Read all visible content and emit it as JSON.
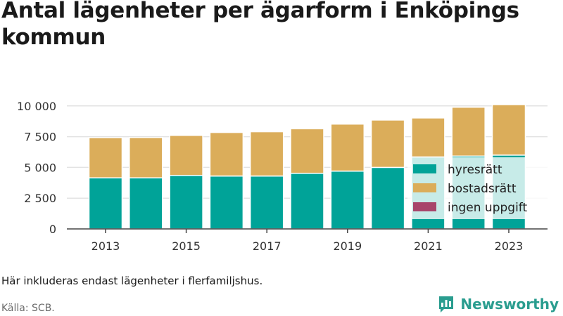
{
  "title": "Antal lägenheter per ägarform i Enköpings kommun",
  "note": "Här inkluderas endast lägenheter i flerfamiljshus.",
  "source": "Källa: SCB.",
  "brand": {
    "name": "Newsworthy",
    "icon": "bar-chart-speech-bubble-icon",
    "color": "#2a9d8f"
  },
  "chart_data": {
    "type": "bar",
    "stacked": true,
    "title": "Antal lägenheter per ägarform i Enköpings kommun",
    "xlabel": "",
    "ylabel": "",
    "x": [
      2013,
      2014,
      2015,
      2016,
      2017,
      2018,
      2019,
      2020,
      2021,
      2022,
      2023
    ],
    "x_tick_labels": [
      "2013",
      "2015",
      "2017",
      "2019",
      "2021",
      "2023"
    ],
    "x_ticks": [
      2013,
      2015,
      2017,
      2019,
      2021,
      2023
    ],
    "y_ticks": [
      0,
      2500,
      5000,
      7500,
      10000
    ],
    "y_tick_labels": [
      "0",
      "2 500",
      "5 000",
      "7 500",
      "10 000"
    ],
    "ylim": [
      0,
      10500
    ],
    "grid": true,
    "legend_position": "bottom-right",
    "series": [
      {
        "name": "hyresrätt",
        "color": "#00a398",
        "values": [
          4150,
          4150,
          4350,
          4300,
          4300,
          4520,
          4700,
          5000,
          5850,
          5920,
          6000
        ]
      },
      {
        "name": "bostadsrätt",
        "color": "#dbad5a",
        "values": [
          3270,
          3280,
          3250,
          3540,
          3600,
          3620,
          3820,
          3850,
          3170,
          3970,
          4100
        ]
      },
      {
        "name": "ingen uppgift",
        "color": "#a8456b",
        "values": [
          0,
          0,
          0,
          0,
          0,
          0,
          0,
          0,
          0,
          0,
          0
        ]
      }
    ]
  }
}
